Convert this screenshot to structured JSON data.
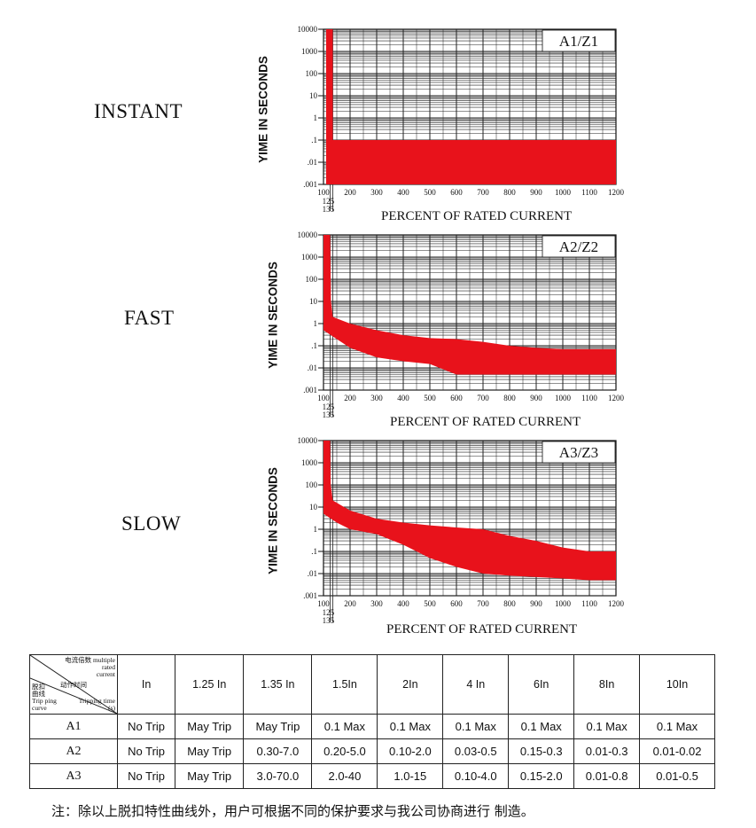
{
  "chart_data": [
    {
      "type": "area",
      "curve_label": "INSTANT",
      "badge": "A1/Z1",
      "xlabel": "PERCENT OF RATED CURRENT",
      "ylabel": "YIME IN SECONDS",
      "y_scale": "log",
      "ylim": [
        0.001,
        10000
      ],
      "xlim": [
        100,
        1200
      ],
      "y_ticks": [
        "10000",
        "1000",
        "100",
        "10",
        "1",
        ".1",
        ".01",
        ".001"
      ],
      "x_ticks": [
        "100",
        "200",
        "300",
        "400",
        "500",
        "600",
        "700",
        "800",
        "900",
        "1000",
        "1100",
        "1200"
      ],
      "x_sub_ticks": [
        "125",
        "135"
      ],
      "band_color": "#e8121b",
      "upper": [
        [
          110,
          10000
        ],
        [
          135,
          10000
        ],
        [
          135,
          0.1
        ],
        [
          1200,
          0.1
        ]
      ],
      "lower": [
        [
          110,
          0.001
        ],
        [
          1200,
          0.001
        ]
      ]
    },
    {
      "type": "area",
      "curve_label": "FAST",
      "badge": "A2/Z2",
      "xlabel": "PERCENT OF RATED CURRENT",
      "ylabel": "YIME IN SECONDS",
      "y_scale": "log",
      "ylim": [
        0.001,
        10000
      ],
      "xlim": [
        100,
        1200
      ],
      "y_ticks": [
        "10000",
        "1000",
        "100",
        "10",
        "1",
        ".1",
        ".01",
        ".001"
      ],
      "x_ticks": [
        "100",
        "200",
        "300",
        "400",
        "500",
        "600",
        "700",
        "800",
        "900",
        "1000",
        "1100",
        "1200"
      ],
      "x_sub_ticks": [
        "125",
        "135"
      ],
      "band_color": "#e8121b",
      "upper": [
        [
          100,
          10000
        ],
        [
          125,
          10000
        ],
        [
          128,
          10
        ],
        [
          135,
          2
        ],
        [
          200,
          1
        ],
        [
          300,
          0.5
        ],
        [
          400,
          0.3
        ],
        [
          500,
          0.22
        ],
        [
          600,
          0.2
        ],
        [
          700,
          0.15
        ],
        [
          800,
          0.1
        ],
        [
          900,
          0.08
        ],
        [
          1000,
          0.07
        ],
        [
          1100,
          0.07
        ],
        [
          1200,
          0.07
        ]
      ],
      "lower": [
        [
          100,
          0.5
        ],
        [
          150,
          0.2
        ],
        [
          200,
          0.08
        ],
        [
          300,
          0.03
        ],
        [
          400,
          0.02
        ],
        [
          500,
          0.015
        ],
        [
          600,
          0.005
        ],
        [
          700,
          0.005
        ],
        [
          800,
          0.005
        ],
        [
          900,
          0.005
        ],
        [
          1000,
          0.005
        ],
        [
          1100,
          0.005
        ],
        [
          1200,
          0.005
        ]
      ]
    },
    {
      "type": "area",
      "curve_label": "SLOW",
      "badge": "A3/Z3",
      "xlabel": "PERCENT OF RATED CURRENT",
      "ylabel": "YIME IN SECONDS",
      "y_scale": "log",
      "ylim": [
        0.001,
        10000
      ],
      "xlim": [
        100,
        1200
      ],
      "y_ticks": [
        "10000",
        "1000",
        "100",
        "10",
        "1",
        ".1",
        ".01",
        ".001"
      ],
      "x_ticks": [
        "100",
        "200",
        "300",
        "400",
        "500",
        "600",
        "700",
        "800",
        "900",
        "1000",
        "1100",
        "1200"
      ],
      "x_sub_ticks": [
        "125",
        "135"
      ],
      "band_color": "#e8121b",
      "upper": [
        [
          100,
          10000
        ],
        [
          125,
          10000
        ],
        [
          127,
          100
        ],
        [
          135,
          20
        ],
        [
          200,
          7
        ],
        [
          300,
          3
        ],
        [
          400,
          2
        ],
        [
          500,
          1.5
        ],
        [
          600,
          1.2
        ],
        [
          700,
          1
        ],
        [
          800,
          0.5
        ],
        [
          900,
          0.3
        ],
        [
          1000,
          0.15
        ],
        [
          1100,
          0.1
        ],
        [
          1200,
          0.1
        ]
      ],
      "lower": [
        [
          100,
          5
        ],
        [
          150,
          2
        ],
        [
          200,
          1
        ],
        [
          300,
          0.6
        ],
        [
          400,
          0.2
        ],
        [
          500,
          0.05
        ],
        [
          600,
          0.02
        ],
        [
          700,
          0.01
        ],
        [
          800,
          0.008
        ],
        [
          900,
          0.007
        ],
        [
          1000,
          0.006
        ],
        [
          1100,
          0.005
        ],
        [
          1200,
          0.005
        ]
      ]
    }
  ],
  "table": {
    "corner": {
      "top_right": [
        "电流倍数 multiple",
        "rated",
        "current"
      ],
      "middle": [
        "动作时间"
      ],
      "bottom_left": [
        "脱扣",
        "曲线",
        "Trip ping",
        "curve"
      ],
      "bottom_right": [
        "Tripping time",
        "(s)"
      ]
    },
    "headers": [
      "In",
      "1.25 In",
      "1.35 In",
      "1.5In",
      "2In",
      "4 In",
      "6In",
      "8In",
      "10In"
    ],
    "rows": [
      {
        "name": "A1",
        "cells": [
          "No Trip",
          "May Trip",
          "May Trip",
          "0.1  Max",
          "0.1 Max",
          "0.1 Max",
          "0.1  Max",
          "0.1 Max",
          "0.1  Max"
        ]
      },
      {
        "name": "A2",
        "cells": [
          "No Trip",
          "May Trip",
          "0.30-7.0",
          "0.20-5.0",
          "0.10-2.0",
          "0.03-0.5",
          "0.15-0.3",
          "0.01-0.3",
          "0.01-0.02"
        ]
      },
      {
        "name": "A3",
        "cells": [
          "No Trip",
          "May Trip",
          "3.0-70.0",
          "2.0-40",
          "1.0-15",
          "0.10-4.0",
          "0.15-2.0",
          "0.01-0.8",
          "0.01-0.5"
        ]
      }
    ]
  },
  "note": "注：除以上脱扣特性曲线外，用户可根据不同的保护要求与我公司协商进行 制造。"
}
